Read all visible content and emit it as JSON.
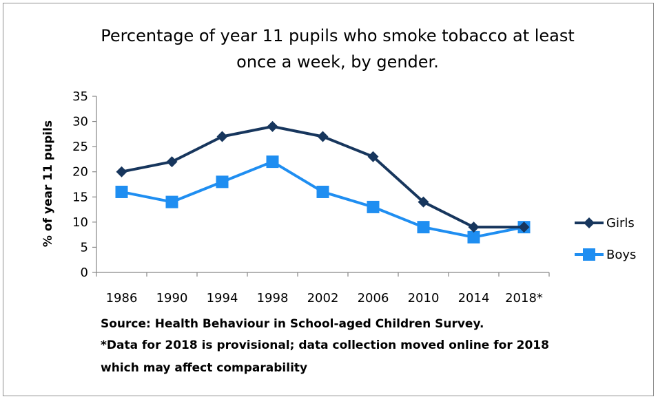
{
  "chart_data": {
    "type": "line",
    "title_lines": [
      "Percentage of year 11 pupils who smoke tobacco at least",
      "once a week, by gender."
    ],
    "ylabel": "% of year 11 pupils",
    "xlabel": "",
    "categories": [
      "1986",
      "1990",
      "1994",
      "1998",
      "2002",
      "2006",
      "2010",
      "2014",
      "2018*"
    ],
    "ylim": [
      0,
      35
    ],
    "yticks": [
      0,
      5,
      10,
      15,
      20,
      25,
      30,
      35
    ],
    "grid": false,
    "legend_position": "right",
    "series": [
      {
        "name": "Girls",
        "values": [
          20,
          22,
          27,
          29,
          27,
          23,
          14,
          9,
          9
        ],
        "color": "#17365d",
        "marker": "diamond"
      },
      {
        "name": "Boys",
        "values": [
          16,
          14,
          18,
          22,
          16,
          13,
          9,
          7,
          9
        ],
        "color": "#1f8ef1",
        "marker": "square"
      }
    ]
  },
  "notes": [
    "Source: Health Behaviour in School-aged Children Survey.",
    "*Data for 2018 is provisional; data collection moved online for 2018",
    "which may affect comparability"
  ]
}
